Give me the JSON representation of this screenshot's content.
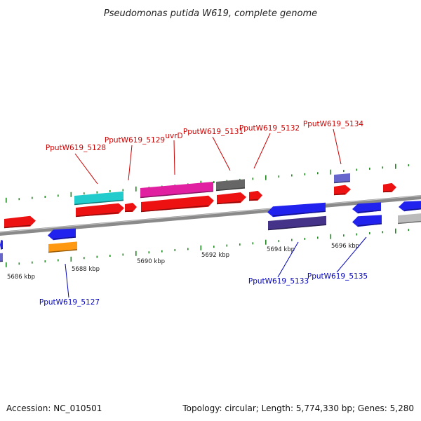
{
  "title": "Pseudomonas putida W619, complete genome",
  "colors": {
    "forward_label": "#cc0000",
    "reverse_label": "#0000bb",
    "backbone": "#8a8a8a",
    "tick": "#228822"
  },
  "scale_labels": [
    "5686 kbp",
    "5688 kbp",
    "5690 kbp",
    "5692 kbp",
    "5694 kbp",
    "5696 kbp"
  ],
  "gene_labels_forward": [
    "PputW619_5128",
    "PputW619_5129",
    "uvrD",
    "PputW619_5131",
    "PputW619_5132",
    "PputW619_5134"
  ],
  "gene_labels_reverse": [
    "PputW619_5127",
    "PputW619_5133",
    "PputW619_5135"
  ],
  "footer": {
    "accession": "Accession: NC_010501",
    "summary": "Topology: circular; Length: 5,774,330 bp; Genes: 5,280"
  }
}
